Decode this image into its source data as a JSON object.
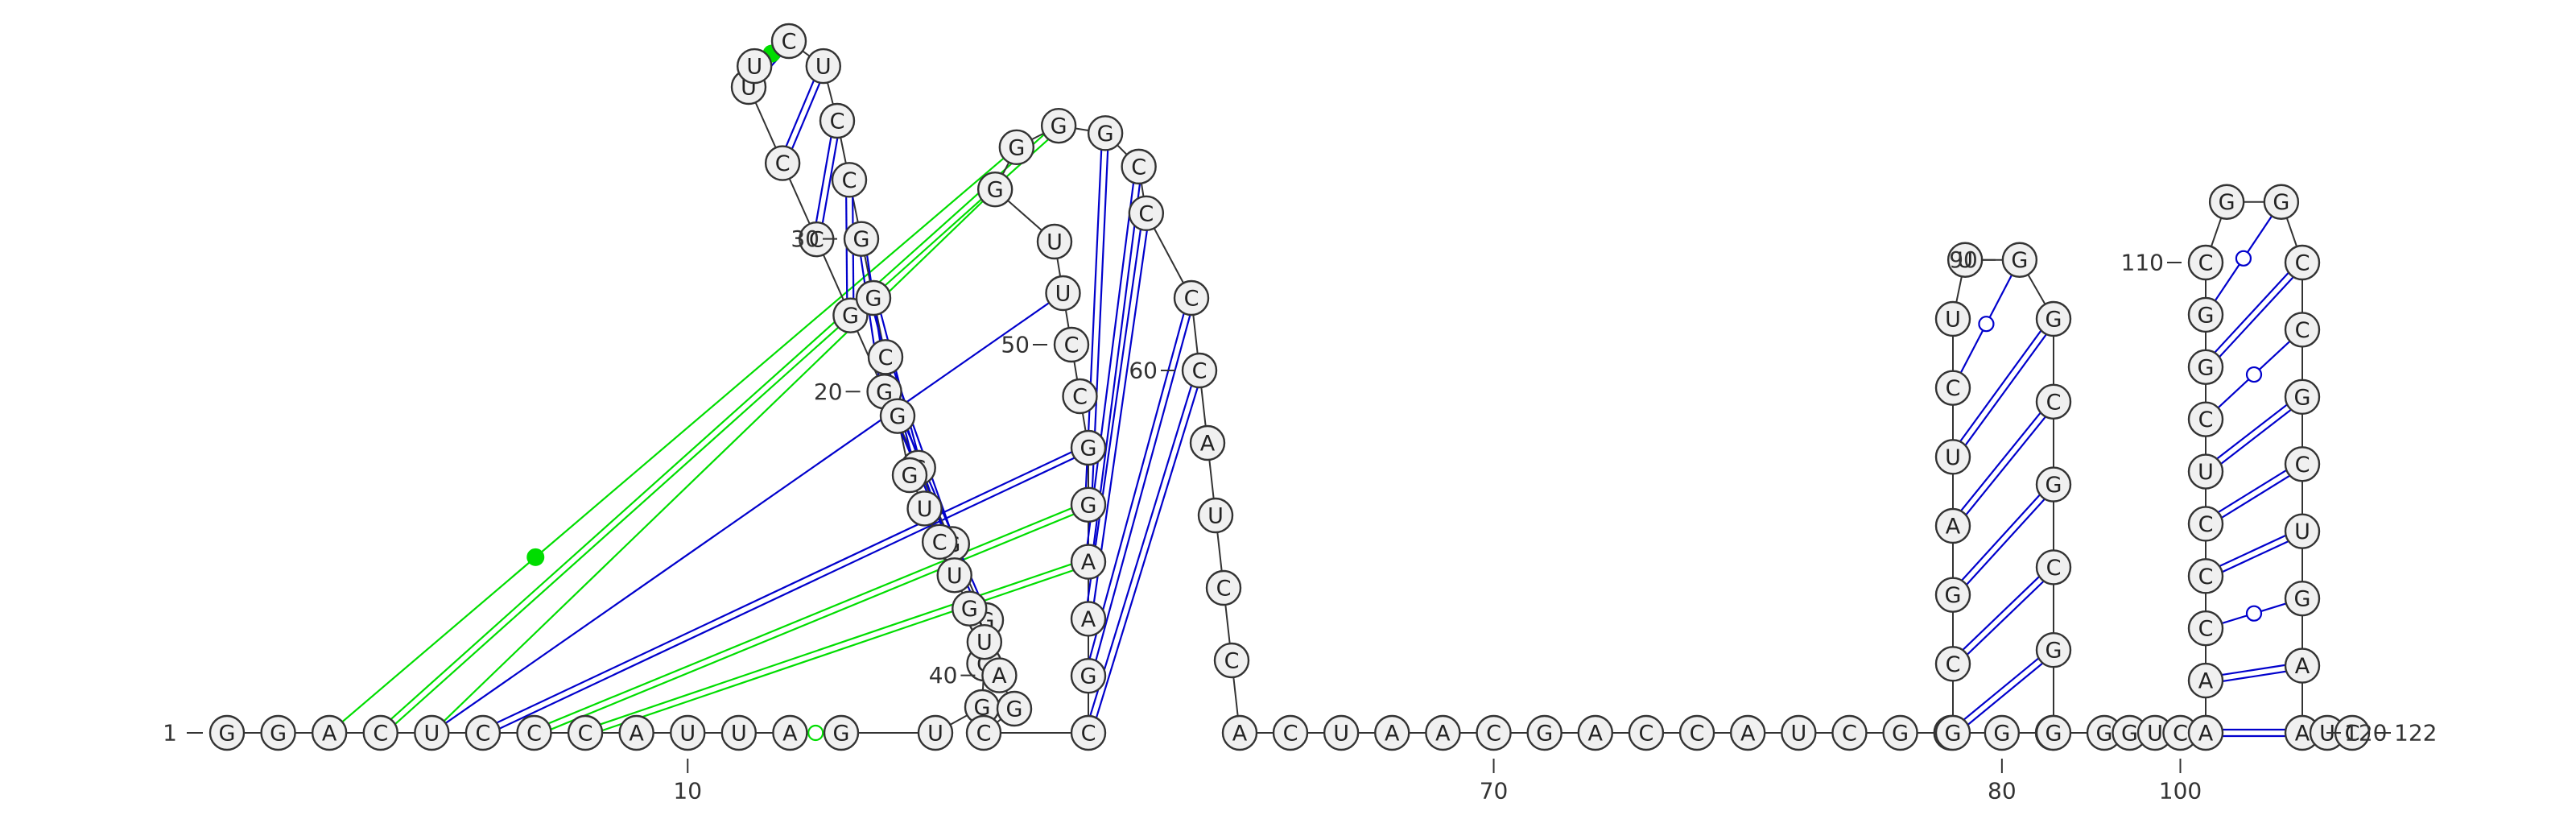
{
  "sequence": "GGACUCCCAUUAGUGCGGCGGCCUUCUCCGGCGGUCUGUAGCCGAAGGCCUUGGGGCCCCAUCCACUAACGACCAUCGCGCGCGAUCUUGGCGCGGGGUCAACCCUCGGCGGCCGCUGAAUC",
  "labels": [
    {
      "text": "1",
      "nt": 1
    },
    {
      "text": "10",
      "nt": 10
    },
    {
      "text": "20",
      "nt": 20
    },
    {
      "text": "30",
      "nt": 30
    },
    {
      "text": "40",
      "nt": 40
    },
    {
      "text": "50",
      "nt": 50
    },
    {
      "text": "60",
      "nt": 60
    },
    {
      "text": "70",
      "nt": 70
    },
    {
      "text": "80",
      "nt": 80
    },
    {
      "text": "90",
      "nt": 90
    },
    {
      "text": "100",
      "nt": 100
    },
    {
      "text": "110",
      "nt": 110
    },
    {
      "text": "120",
      "nt": 120
    },
    {
      "text": "122",
      "nt": 122
    }
  ],
  "pairs": [
    {
      "i": 17,
      "j": 33,
      "kind": "canonical"
    },
    {
      "i": 19,
      "j": 31,
      "kind": "canonical"
    },
    {
      "i": 20,
      "j": 30,
      "kind": "canonical"
    },
    {
      "i": 21,
      "j": 29,
      "kind": "canonical"
    },
    {
      "i": 22,
      "j": 28,
      "kind": "canonical"
    },
    {
      "i": 23,
      "j": 27,
      "kind": "canonical"
    },
    {
      "i": 24,
      "j": 26,
      "kind": "canonical"
    },
    {
      "i": 25,
      "j": 26,
      "kind": "noncanonical-green-dot"
    },
    {
      "i": 18,
      "j": 32,
      "kind": "canonical"
    },
    {
      "i": 47,
      "j": 56,
      "kind": "canonical"
    },
    {
      "i": 46,
      "j": 57,
      "kind": "canonical"
    },
    {
      "i": 45,
      "j": 58,
      "kind": "canonical"
    },
    {
      "i": 44,
      "j": 59,
      "kind": "canonical"
    },
    {
      "i": 43,
      "j": 60,
      "kind": "canonical"
    },
    {
      "i": 81,
      "j": 96,
      "kind": "canonical"
    },
    {
      "i": 82,
      "j": 95,
      "kind": "canonical"
    },
    {
      "i": 83,
      "j": 94,
      "kind": "canonical"
    },
    {
      "i": 84,
      "j": 93,
      "kind": "canonical"
    },
    {
      "i": 85,
      "j": 92,
      "kind": "canonical"
    },
    {
      "i": 86,
      "j": 91,
      "kind": "canonical"
    },
    {
      "i": 87,
      "j": 90,
      "kind": "wobble-circle"
    },
    {
      "i": 101,
      "j": 120,
      "kind": "canonical"
    },
    {
      "i": 102,
      "j": 119,
      "kind": "canonical"
    },
    {
      "i": 103,
      "j": 118,
      "kind": "wobble-circle"
    },
    {
      "i": 104,
      "j": 117,
      "kind": "canonical"
    },
    {
      "i": 105,
      "j": 116,
      "kind": "canonical"
    },
    {
      "i": 106,
      "j": 115,
      "kind": "canonical"
    },
    {
      "i": 107,
      "j": 114,
      "kind": "wobble-circle"
    },
    {
      "i": 108,
      "j": 113,
      "kind": "canonical"
    },
    {
      "i": 109,
      "j": 112,
      "kind": "wobble-circle"
    },
    {
      "i": 12,
      "j": 13,
      "kind": "noncanonical-green-circle"
    }
  ],
  "long_range": [
    {
      "i": 3,
      "j": 54,
      "color": "#00dd00",
      "mark": "filled-dot"
    },
    {
      "i": 4,
      "j": 55,
      "color": "#00dd00",
      "mark": "double"
    },
    {
      "i": 5,
      "j": 51,
      "color": "#0000cc",
      "mark": "single"
    },
    {
      "i": 6,
      "j": 48,
      "color": "#0000cc",
      "mark": "double"
    },
    {
      "i": 7,
      "j": 47,
      "color": "#00dd00",
      "mark": "double"
    },
    {
      "i": 8,
      "j": 46,
      "color": "#00dd00",
      "mark": "double"
    },
    {
      "i": 5,
      "j": 53,
      "color": "#00dd00",
      "mark": "single"
    }
  ],
  "colors": {
    "canonical": "#0000cc",
    "noncanonical": "#00dd00",
    "backbone": "#333333",
    "node_fill": "#f0f0f0"
  }
}
